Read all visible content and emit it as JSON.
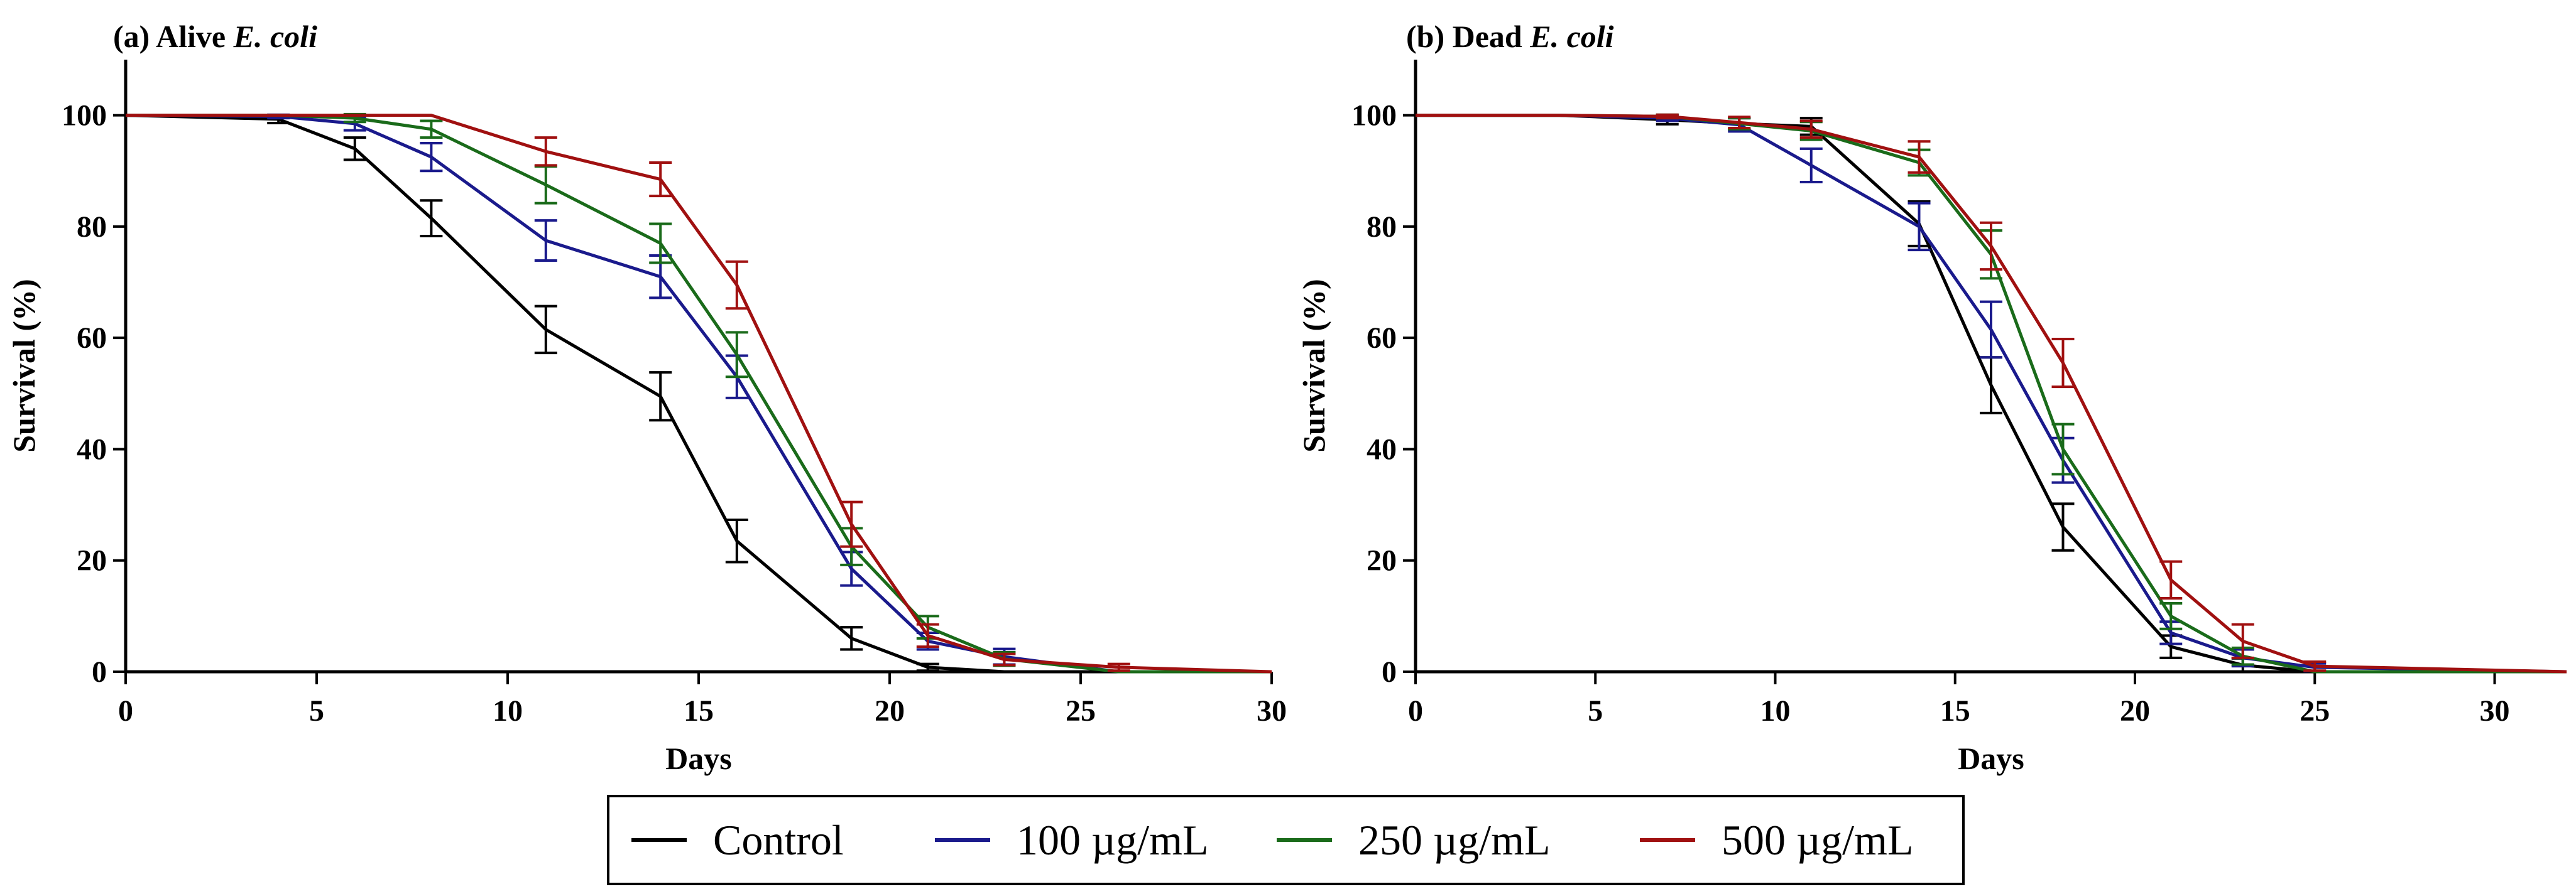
{
  "legend": [
    {
      "label": "Control",
      "color": "#000000"
    },
    {
      "label": "100 µg/mL",
      "color": "#1a1a8c"
    },
    {
      "label": "250 µg/mL",
      "color": "#1a6b1a"
    },
    {
      "label": "500 µg/mL",
      "color": "#a01010"
    }
  ],
  "chart_data": [
    {
      "type": "line",
      "title_prefix": "(a) Alive ",
      "title_italic": "E. coli",
      "xlabel": "Days",
      "ylabel": "Survival (%)",
      "xlim": [
        0,
        30
      ],
      "ylim": [
        0,
        110
      ],
      "xticks": [
        0,
        5,
        10,
        15,
        20,
        25,
        30
      ],
      "yticks": [
        0,
        20,
        40,
        60,
        80,
        100
      ],
      "series": [
        {
          "name": "Control",
          "color": "#000000",
          "x": [
            0,
            4,
            6,
            8,
            11,
            14,
            16,
            19,
            21,
            23,
            26,
            30
          ],
          "y": [
            100,
            99.3,
            94,
            81.5,
            61.5,
            49.5,
            23.5,
            6,
            0.8,
            0,
            0,
            0
          ],
          "err": [
            0,
            0.7,
            2,
            3.2,
            4.2,
            4.3,
            3.8,
            2,
            0.6,
            0,
            0,
            0
          ]
        },
        {
          "name": "100 µg/mL",
          "color": "#1a1a8c",
          "x": [
            0,
            4,
            6,
            8,
            11,
            14,
            16,
            19,
            21,
            23,
            26,
            30
          ],
          "y": [
            100,
            99.8,
            98.5,
            92.5,
            77.5,
            71,
            53,
            18.5,
            5.5,
            2.7,
            0,
            0
          ],
          "err": [
            0,
            0.3,
            1.2,
            2.5,
            3.6,
            3.8,
            3.8,
            3,
            1.5,
            1.4,
            0,
            0
          ]
        },
        {
          "name": "250 µg/mL",
          "color": "#1a6b1a",
          "x": [
            0,
            4,
            6,
            8,
            11,
            14,
            16,
            19,
            21,
            23,
            26,
            30
          ],
          "y": [
            100,
            100,
            99.5,
            97.5,
            87.5,
            77,
            57,
            22.5,
            8,
            2.3,
            0,
            0
          ],
          "err": [
            0,
            0,
            0.7,
            1.5,
            3.3,
            3.5,
            4,
            3.3,
            2,
            1.2,
            0,
            0
          ]
        },
        {
          "name": "500 µg/mL",
          "color": "#a01010",
          "x": [
            0,
            4,
            6,
            8,
            11,
            14,
            16,
            19,
            21,
            23,
            26,
            30
          ],
          "y": [
            100,
            100,
            100,
            100,
            93.5,
            88.5,
            69.5,
            26.5,
            6.5,
            2.2,
            0.8,
            0
          ],
          "err": [
            0,
            0,
            0,
            0,
            2.5,
            3,
            4.2,
            4,
            2,
            1,
            0.6,
            0
          ]
        }
      ]
    },
    {
      "type": "line",
      "title_prefix": "(b) Dead ",
      "title_italic": "E. coli",
      "xlabel": "Days",
      "ylabel": "Survival (%)",
      "xlim": [
        0,
        32
      ],
      "ylim": [
        0,
        110
      ],
      "xticks": [
        0,
        5,
        10,
        15,
        20,
        25,
        30
      ],
      "yticks": [
        0,
        20,
        40,
        60,
        80,
        100
      ],
      "series": [
        {
          "name": "Control",
          "color": "#000000",
          "x": [
            0,
            4,
            7,
            9,
            11,
            14,
            16,
            18,
            21,
            23,
            25,
            32
          ],
          "y": [
            100,
            100,
            99.2,
            98.5,
            98,
            80.5,
            51.5,
            26,
            4.5,
            1.2,
            0,
            0
          ],
          "err": [
            0,
            0,
            0.8,
            1,
            1.5,
            4,
            5,
            4.2,
            2,
            1.2,
            0,
            0
          ]
        },
        {
          "name": "100 µg/mL",
          "color": "#1a1a8c",
          "x": [
            0,
            4,
            7,
            9,
            11,
            14,
            16,
            18,
            21,
            23,
            25,
            32
          ],
          "y": [
            100,
            100,
            99.5,
            98.3,
            91,
            80,
            61.5,
            38,
            7,
            2.5,
            0.8,
            0
          ],
          "err": [
            0,
            0,
            0.5,
            1.2,
            3,
            4.2,
            5,
            4,
            2,
            1.5,
            0.7,
            0
          ]
        },
        {
          "name": "250 µg/mL",
          "color": "#1a6b1a",
          "x": [
            0,
            4,
            7,
            9,
            11,
            14,
            16,
            18,
            21,
            23,
            25,
            32
          ],
          "y": [
            100,
            100,
            99.8,
            98.5,
            97.2,
            91.5,
            75,
            40,
            10,
            2.8,
            0,
            0
          ],
          "err": [
            0,
            0,
            0.3,
            1,
            1.6,
            2.3,
            4.3,
            4.5,
            2.3,
            1.5,
            0,
            0
          ]
        },
        {
          "name": "500 µg/mL",
          "color": "#a01010",
          "x": [
            0,
            4,
            7,
            9,
            11,
            14,
            16,
            18,
            21,
            23,
            25,
            32
          ],
          "y": [
            100,
            100,
            99.8,
            98.7,
            97.5,
            92.5,
            76.5,
            55.5,
            16.5,
            5.5,
            1,
            0
          ],
          "err": [
            0,
            0,
            0.3,
            1,
            1.5,
            2.8,
            4.2,
            4.3,
            3.3,
            3,
            0.8,
            0
          ]
        }
      ]
    }
  ]
}
